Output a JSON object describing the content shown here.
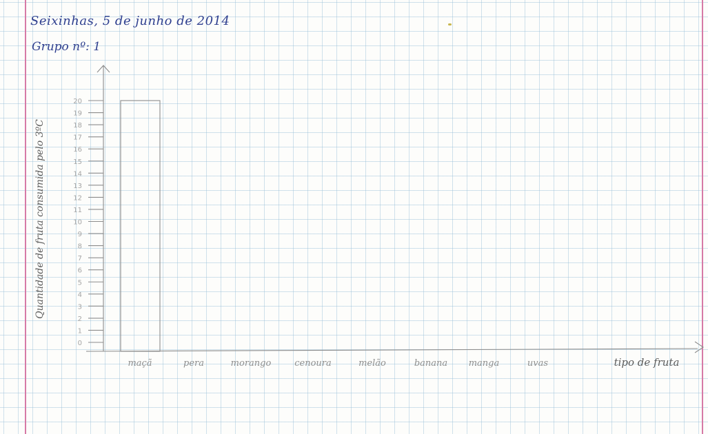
{
  "header": {
    "date": "Seixinhas, 5 de junho de 2014",
    "group": "Grupo nº: 1"
  },
  "chart_data": {
    "type": "bar",
    "categories": [
      "maçã",
      "pera",
      "morango",
      "cenoura",
      "melão",
      "banana",
      "manga",
      "uvas"
    ],
    "values": [
      20,
      0,
      0,
      0,
      0,
      0,
      0,
      0
    ],
    "xlabel": "tipo de fruta",
    "ylabel": "Quantidade de fruta consumida pelo 3ºC",
    "ylim": [
      0,
      20
    ],
    "yticks": [
      "0",
      "1",
      "2",
      "3",
      "4",
      "5",
      "6",
      "7",
      "8",
      "9",
      "10",
      "11",
      "12",
      "13",
      "14",
      "15",
      "16",
      "17",
      "18",
      "19",
      "20"
    ],
    "grid": true,
    "colors": {
      "pencil": "#8c8c8c",
      "ink": "#2e3f8f",
      "margin": "#d67aa6"
    }
  }
}
